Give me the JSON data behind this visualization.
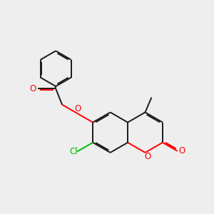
{
  "bg_color": "#eeeeee",
  "bond_color": "#1a1a1a",
  "o_color": "#ff0000",
  "cl_color": "#00bb00",
  "lw": 1.4,
  "dbo": 0.06,
  "dbf": 0.12,
  "xlim": [
    0,
    10
  ],
  "ylim": [
    0,
    10
  ],
  "figsize": [
    3.0,
    3.0
  ],
  "dpi": 100,
  "label_fs": 8.5
}
